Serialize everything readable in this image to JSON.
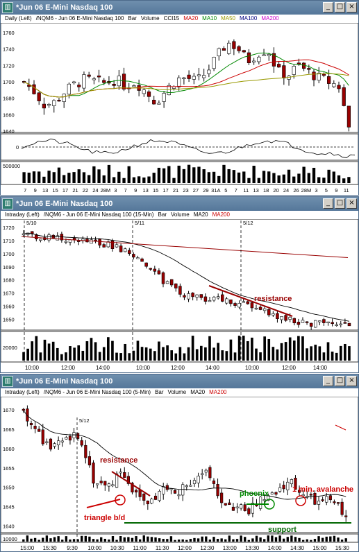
{
  "windows": [
    {
      "title": "*Jun 06  E-Mini Nasdaq 100",
      "info": [
        {
          "text": "Daily  (Left)",
          "color": "#000000"
        },
        {
          "text": "/NQM6 - Jun 06  E-Mini Nasdaq 100",
          "color": "#000000"
        },
        {
          "text": "Bar",
          "color": "#000000"
        },
        {
          "text": "Volume",
          "color": "#000000"
        },
        {
          "text": "CCI15",
          "color": "#000000"
        },
        {
          "text": "MA20",
          "color": "#cc0000"
        },
        {
          "text": "MA10",
          "color": "#008800"
        },
        {
          "text": "MA50",
          "color": "#999900"
        },
        {
          "text": "MA100",
          "color": "#000080"
        },
        {
          "text": "MA200",
          "color": "#cc00cc"
        }
      ],
      "price_ticks": [
        "1760",
        "1740",
        "1720",
        "1700",
        "1680",
        "1660",
        "1640"
      ],
      "cci_ticks": [
        "0"
      ],
      "volume_ticks": [
        "500000"
      ],
      "x_ticks": [
        "7",
        "9",
        "13",
        "15",
        "17",
        "21",
        "22",
        "24",
        "28M",
        "3",
        "7",
        "9",
        "13",
        "15",
        "17",
        "21",
        "23",
        "27",
        "29",
        "31A",
        "5",
        "7",
        "11",
        "13",
        "18",
        "20",
        "24",
        "26",
        "28M",
        "3",
        "5",
        "9",
        "11"
      ]
    },
    {
      "title": "*Jun 06  E-Mini Nasdaq 100",
      "info": [
        {
          "text": "Intraday  (Left)",
          "color": "#000000"
        },
        {
          "text": "/NQM6 - Jun 06  E-Mini Nasdaq 100  (15-Min)",
          "color": "#000000"
        },
        {
          "text": "Bar",
          "color": "#000000"
        },
        {
          "text": "Volume",
          "color": "#000000"
        },
        {
          "text": "MA20",
          "color": "#000000"
        },
        {
          "text": "MA200",
          "color": "#cc0000"
        }
      ],
      "price_ticks": [
        "1720",
        "1710",
        "1700",
        "1690",
        "1680",
        "1670",
        "1660",
        "1650"
      ],
      "volume_ticks": [
        "20000"
      ],
      "date_labels": [
        "5/10",
        "5/11",
        "5/12"
      ],
      "x_ticks": [
        "10:00",
        "12:00",
        "14:00",
        "10:00",
        "12:00",
        "14:00",
        "10:00",
        "12:00",
        "14:00"
      ],
      "annotations": [
        {
          "text": "resistance",
          "color": "#990000"
        }
      ]
    },
    {
      "title": "*Jun 06  E-Mini Nasdaq 100",
      "info": [
        {
          "text": "Intraday  (Left)",
          "color": "#000000"
        },
        {
          "text": "/NQM6 - Jun 06  E-Mini Nasdaq 100  (5-Min)",
          "color": "#000000"
        },
        {
          "text": "Bar",
          "color": "#000000"
        },
        {
          "text": "Volume",
          "color": "#000000"
        },
        {
          "text": "MA20",
          "color": "#000000"
        },
        {
          "text": "MA200",
          "color": "#cc0000"
        }
      ],
      "price_ticks": [
        "1670",
        "1665",
        "1660",
        "1655",
        "1650",
        "1645",
        "1640"
      ],
      "volume_ticks": [
        "10000"
      ],
      "date_labels": [
        "5/12"
      ],
      "x_ticks": [
        "15:00",
        "15:30",
        "9:30",
        "10:00",
        "10:30",
        "11:00",
        "11:30",
        "12:00",
        "12:30",
        "13:00",
        "13:30",
        "14:00",
        "14:30",
        "15:00",
        "15:30"
      ],
      "annotations": [
        {
          "text": "resistance",
          "color": "#990000"
        },
        {
          "text": "triangle b/d",
          "color": "#cc0000"
        },
        {
          "text": "phoenix",
          "color": "#008800"
        },
        {
          "text": "1 min. avalanche",
          "color": "#cc0000"
        },
        {
          "text": "support",
          "color": "#006600"
        }
      ]
    }
  ],
  "colors": {
    "titlebar": "#5f82a5",
    "up": "#ffffff",
    "down": "#990000",
    "ma_black": "#000000",
    "ma200": "#8b1a1a",
    "resistance": "#990000",
    "support": "#006600",
    "phoenix": "#008800"
  },
  "chart_data": [
    {
      "type": "bar",
      "title": "Daily (Left) /NQM6 - Jun 06 E-Mini Nasdaq 100",
      "xlabel": "",
      "ylabel": "",
      "ylim": [
        1640,
        1765
      ],
      "x": [
        "7",
        "9",
        "13",
        "15",
        "17",
        "21",
        "22",
        "24",
        "28M",
        "3",
        "7",
        "9",
        "13",
        "15",
        "17",
        "21",
        "23",
        "27",
        "29",
        "31A",
        "5",
        "7",
        "11",
        "13",
        "18",
        "20",
        "24",
        "26",
        "28M",
        "3",
        "5",
        "9",
        "11"
      ],
      "series": [
        {
          "name": "close",
          "values": [
            1700,
            1688,
            1672,
            1675,
            1688,
            1697,
            1703,
            1700,
            1698,
            1703,
            1695,
            1700,
            1688,
            1675,
            1690,
            1703,
            1705,
            1700,
            1712,
            1730,
            1748,
            1742,
            1725,
            1735,
            1740,
            1712,
            1708,
            1720,
            1712,
            1705,
            1700,
            1695,
            1645
          ]
        }
      ]
    },
    {
      "type": "bar",
      "title": "Intraday (Left) /NQM6 - Jun 06 E-Mini Nasdaq 100 (15-Min)",
      "xlabel": "",
      "ylabel": "",
      "ylim": [
        1643,
        1722
      ],
      "x": [
        "5/10 10:00",
        "12:00",
        "14:00",
        "5/11 10:00",
        "12:00",
        "14:00",
        "5/12 10:00",
        "12:00",
        "14:00"
      ],
      "series": [
        {
          "name": "close",
          "values": [
            1714,
            1711,
            1707,
            1690,
            1668,
            1664,
            1652,
            1648,
            1646
          ]
        }
      ]
    },
    {
      "type": "bar",
      "title": "Intraday (Left) /NQM6 - Jun 06 E-Mini Nasdaq 100 (5-Min)",
      "xlabel": "",
      "ylabel": "",
      "ylim": [
        1639,
        1672
      ],
      "x": [
        "15:00",
        "15:30",
        "9:30",
        "10:00",
        "10:30",
        "11:00",
        "11:30",
        "12:00",
        "12:30",
        "13:00",
        "13:30",
        "14:00",
        "14:30",
        "15:00",
        "15:30"
      ],
      "series": [
        {
          "name": "close",
          "values": [
            1665,
            1662,
            1655,
            1652,
            1645,
            1648,
            1650,
            1652,
            1646,
            1645,
            1648,
            1650,
            1648,
            1646,
            1643
          ]
        }
      ]
    }
  ]
}
